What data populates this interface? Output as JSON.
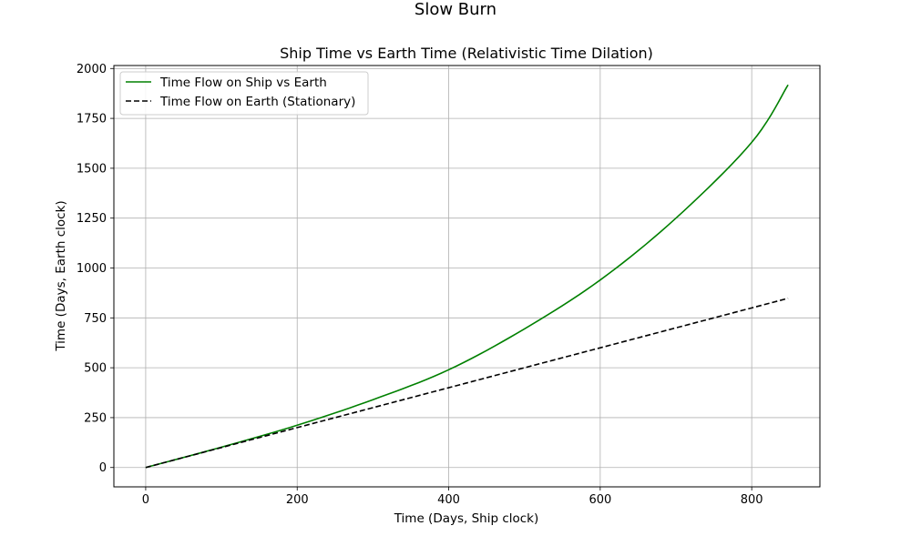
{
  "figure": {
    "suptitle": "Slow Burn"
  },
  "chart_data": {
    "type": "line",
    "title": "Ship Time vs Earth Time (Relativistic Time Dilation)",
    "xlabel": "Time (Days, Ship clock)",
    "ylabel": "Time (Days, Earth clock)",
    "xlim": [
      -42,
      890
    ],
    "ylim": [
      -97,
      2015
    ],
    "xticks": [
      0,
      200,
      400,
      600,
      800
    ],
    "yticks": [
      0,
      250,
      500,
      750,
      1000,
      1250,
      1500,
      1750,
      2000
    ],
    "grid": true,
    "legend_position": "top-left",
    "series": [
      {
        "name": "Time Flow on Ship vs Earth",
        "color": "#008000",
        "style": "solid",
        "x": [
          0,
          100,
          200,
          300,
          400,
          500,
          600,
          700,
          800,
          848
        ],
        "y": [
          0,
          102,
          212,
          340,
          490,
          695,
          940,
          1250,
          1630,
          1918
        ]
      },
      {
        "name": "Time Flow on Earth (Stationary)",
        "color": "#000000",
        "style": "dashed",
        "x": [
          0,
          848
        ],
        "y": [
          0,
          848
        ]
      }
    ]
  }
}
